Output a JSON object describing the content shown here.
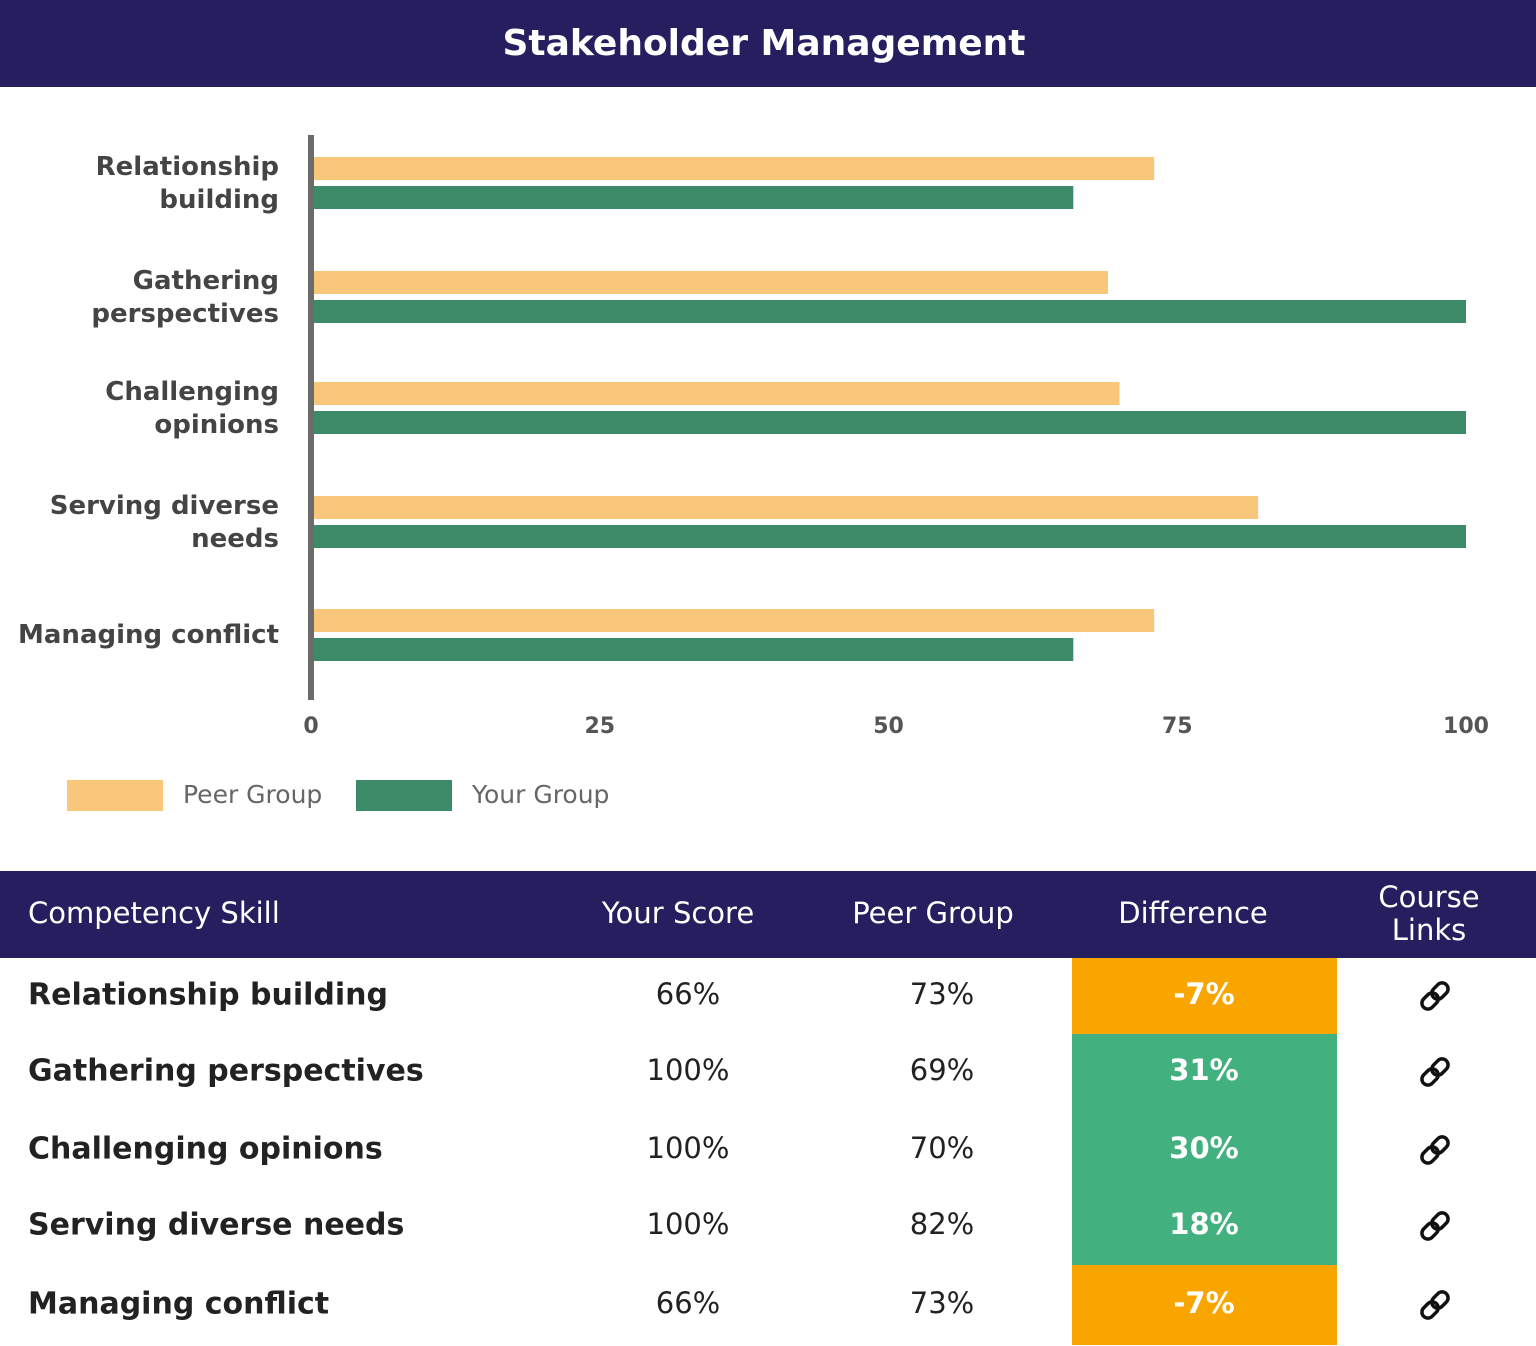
{
  "chart_data": {
    "type": "bar",
    "orientation": "horizontal",
    "title": "Stakeholder Management",
    "categories": [
      "Relationship building",
      "Gathering perspectives",
      "Challenging opinions",
      "Serving diverse needs",
      "Managing conflict"
    ],
    "series": [
      {
        "name": "Peer Group",
        "color": "#f8c77a",
        "values": [
          73,
          69,
          70,
          82,
          73
        ]
      },
      {
        "name": "Your Group",
        "color": "#3d8a68",
        "values": [
          66,
          100,
          100,
          100,
          66
        ]
      }
    ],
    "xlim": [
      0,
      100
    ],
    "xticks": [
      0,
      25,
      50,
      75,
      100
    ],
    "grid": false,
    "legend": "bottom-left"
  },
  "table": {
    "headers": [
      "Competency Skill",
      "Your Score",
      "Peer Group",
      "Difference",
      "Course Links"
    ],
    "rows": [
      {
        "skill": "Relationship building",
        "your_score": "66%",
        "peer_group": "73%",
        "difference": "-7%",
        "color": "#f8a500"
      },
      {
        "skill": "Gathering perspectives",
        "your_score": "100%",
        "peer_group": "69%",
        "difference": "31%",
        "color": "#43b07f"
      },
      {
        "skill": "Challenging opinions",
        "your_score": "100%",
        "peer_group": "70%",
        "difference": "30%",
        "color": "#43b07f"
      },
      {
        "skill": "Serving diverse needs",
        "your_score": "100%",
        "peer_group": "82%",
        "difference": "18%",
        "color": "#43b07f"
      },
      {
        "skill": "Managing conflict",
        "your_score": "66%",
        "peer_group": "73%",
        "difference": "-7%",
        "color": "#f8a500"
      }
    ]
  }
}
